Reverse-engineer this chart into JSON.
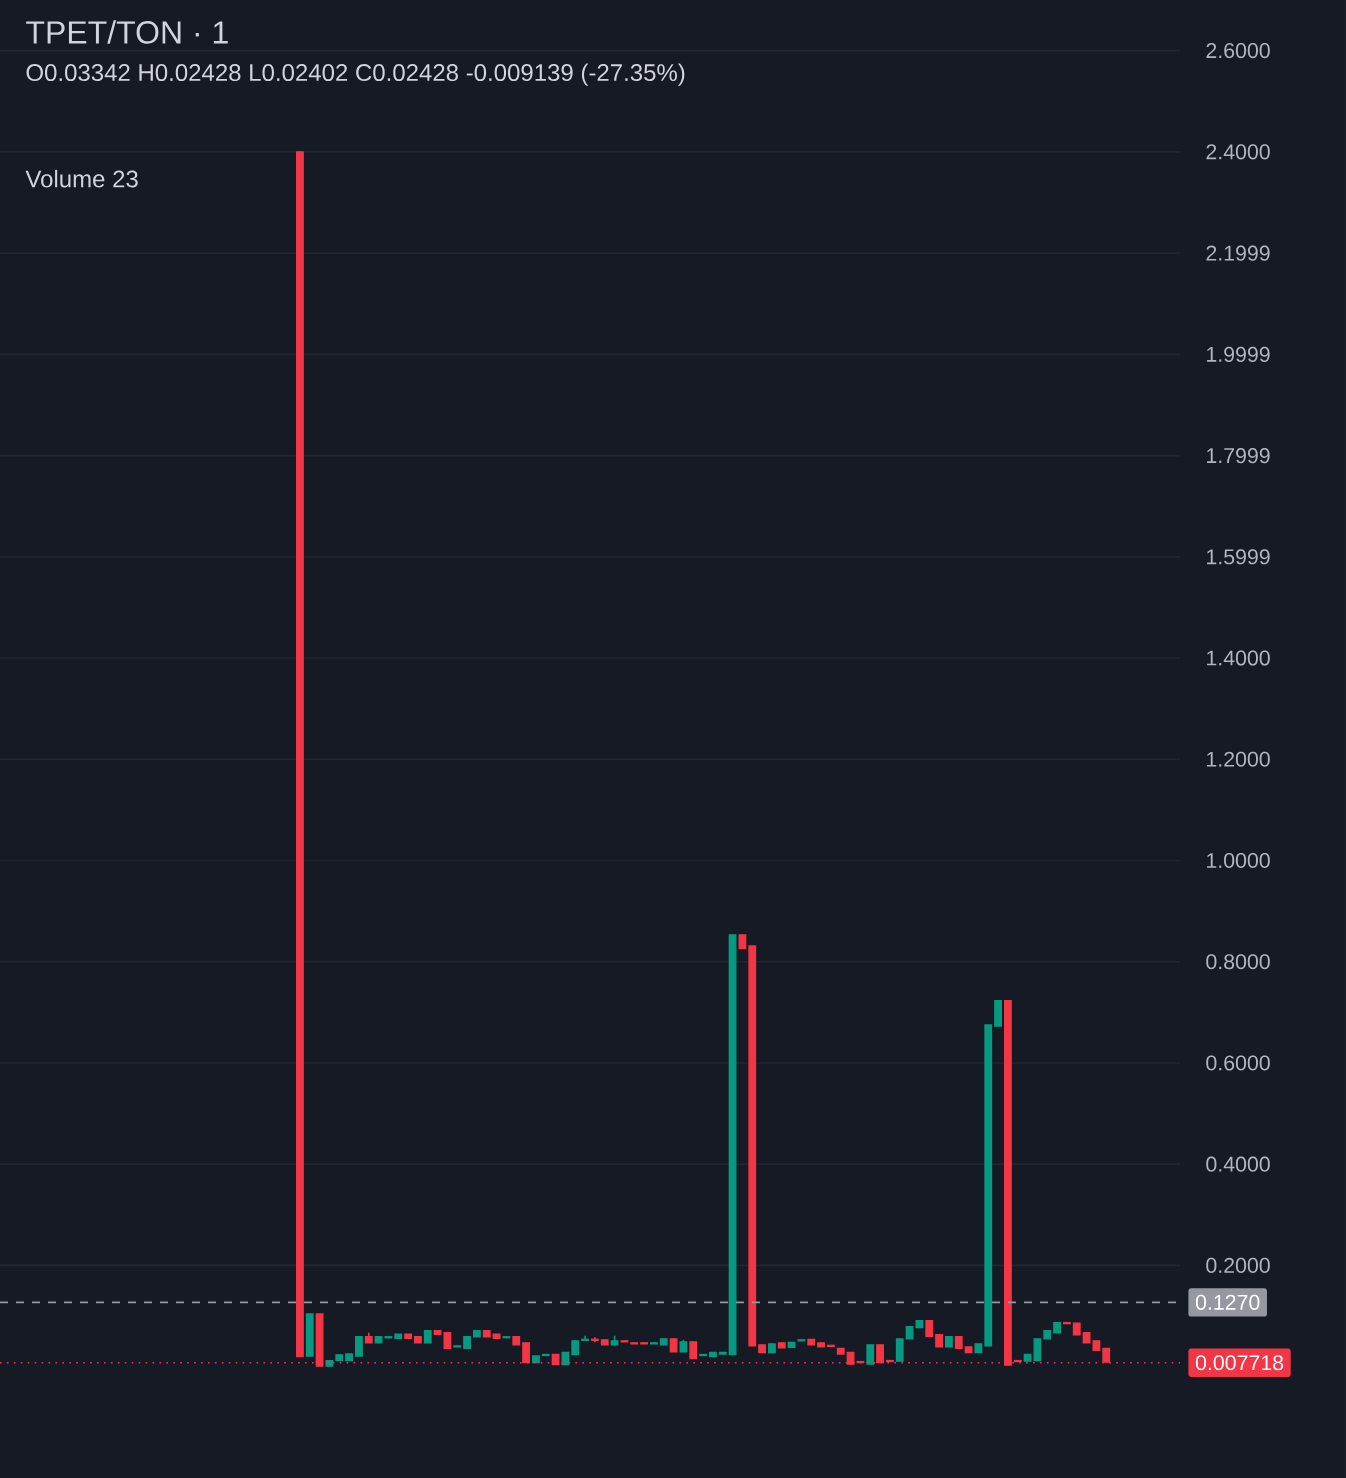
{
  "chart_data": {
    "type": "candlestick",
    "title": "TPET/TON · 1",
    "subtitle": "O0.03342 H0.02428 L0.02402 C0.02428 -0.009139 (-27.35%)",
    "annotations": [
      "Volume 23"
    ],
    "categories": [
      null,
      null,
      null,
      null,
      null,
      null,
      null,
      null,
      null,
      null,
      null,
      null,
      null,
      null,
      null,
      null,
      null,
      null,
      null,
      null,
      null,
      null,
      null,
      null,
      null,
      null,
      null,
      null,
      null,
      null,
      null,
      null,
      null,
      null,
      null,
      null,
      null,
      null,
      null,
      null,
      null,
      null,
      null,
      null,
      null,
      null,
      null,
      null,
      null,
      null,
      null,
      null,
      null,
      null,
      null,
      null,
      null,
      null,
      null,
      null,
      null,
      null,
      null,
      null,
      null,
      null,
      null,
      null,
      null,
      null,
      null,
      null,
      null,
      null,
      null,
      null,
      null,
      null,
      null,
      null,
      null,
      null,
      null,
      null,
      null,
      null,
      null,
      null,
      null,
      null,
      null,
      null,
      null,
      null,
      null,
      null,
      null,
      null,
      null,
      null,
      null,
      null,
      null,
      null,
      null,
      null,
      null,
      null,
      null,
      null,
      null,
      null,
      null,
      null,
      null,
      null,
      null,
      null,
      null,
      null
    ],
    "ohlc": [
      null,
      null,
      null,
      null,
      null,
      null,
      null,
      null,
      null,
      null,
      null,
      null,
      null,
      null,
      null,
      null,
      null,
      null,
      null,
      null,
      null,
      null,
      null,
      null,
      null,
      null,
      null,
      null,
      null,
      null,
      [
        2.4,
        2.4,
        0.02,
        0.02
      ],
      [
        0.021,
        0.104,
        0.021,
        0.104
      ],
      [
        0.104,
        0.104,
        0.001,
        0.001
      ],
      [
        0.001,
        0.012,
        0.001,
        0.012
      ],
      [
        0.012,
        0.025,
        0.012,
        0.023
      ],
      [
        0.012,
        0.025,
        0.012,
        0.025
      ],
      [
        0.021,
        0.059,
        0.021,
        0.059
      ],
      [
        0.059,
        0.067,
        0.047,
        0.047
      ],
      [
        0.047,
        0.059,
        0.047,
        0.059
      ],
      [
        0.057,
        0.059,
        0.057,
        0.059
      ],
      [
        0.056,
        0.064,
        0.056,
        0.064
      ],
      [
        0.064,
        0.064,
        0.056,
        0.056
      ],
      [
        0.059,
        0.059,
        0.047,
        0.047
      ],
      [
        0.047,
        0.071,
        0.047,
        0.071
      ],
      [
        0.071,
        0.071,
        0.064,
        0.064
      ],
      [
        0.067,
        0.067,
        0.036,
        0.036
      ],
      [
        0.039,
        0.041,
        0.039,
        0.041
      ],
      [
        0.036,
        0.059,
        0.036,
        0.059
      ],
      [
        0.059,
        0.071,
        0.059,
        0.071
      ],
      [
        0.071,
        0.071,
        0.059,
        0.059
      ],
      [
        0.064,
        0.064,
        0.056,
        0.056
      ],
      [
        0.057,
        0.059,
        0.057,
        0.059
      ],
      [
        0.059,
        0.059,
        0.043,
        0.043
      ],
      [
        0.047,
        0.047,
        0.008,
        0.008
      ],
      [
        0.008,
        0.021,
        0.008,
        0.021
      ],
      [
        0.022,
        0.024,
        0.022,
        0.024
      ],
      [
        0.024,
        0.024,
        0.004,
        0.004
      ],
      [
        0.004,
        0.028,
        0.004,
        0.028
      ],
      [
        0.024,
        0.051,
        0.024,
        0.051
      ],
      [
        0.052,
        0.061,
        0.052,
        0.054
      ],
      [
        0.054,
        0.058,
        0.048,
        0.052
      ],
      [
        0.053,
        0.053,
        0.043,
        0.043
      ],
      [
        0.043,
        0.061,
        0.043,
        0.051
      ],
      [
        0.051,
        0.051,
        0.049,
        0.049
      ],
      [
        0.047,
        0.047,
        0.045,
        0.045
      ],
      [
        0.047,
        0.047,
        0.045,
        0.045
      ],
      [
        0.045,
        0.047,
        0.045,
        0.047
      ],
      [
        0.043,
        0.055,
        0.043,
        0.055
      ],
      [
        0.055,
        0.055,
        0.029,
        0.029
      ],
      [
        0.029,
        0.053,
        0.029,
        0.049
      ],
      [
        0.049,
        0.049,
        0.016,
        0.016
      ],
      [
        0.022,
        0.024,
        0.022,
        0.024
      ],
      [
        0.02,
        0.028,
        0.02,
        0.028
      ],
      [
        0.025,
        0.028,
        0.025,
        0.028
      ],
      [
        0.024,
        0.853,
        0.024,
        0.853
      ],
      [
        0.853,
        0.853,
        0.826,
        0.826
      ],
      [
        0.831,
        0.831,
        0.041,
        0.041
      ],
      [
        0.043,
        0.043,
        0.028,
        0.028
      ],
      [
        0.028,
        0.045,
        0.028,
        0.045
      ],
      [
        0.047,
        0.047,
        0.037,
        0.037
      ],
      [
        0.038,
        0.048,
        0.038,
        0.048
      ],
      [
        0.051,
        0.053,
        0.051,
        0.053
      ],
      [
        0.054,
        0.054,
        0.043,
        0.043
      ],
      [
        0.047,
        0.047,
        0.039,
        0.039
      ],
      [
        0.042,
        0.042,
        0.04,
        0.04
      ],
      [
        0.036,
        0.036,
        0.025,
        0.025
      ],
      [
        0.028,
        0.028,
        0.005,
        0.005
      ],
      [
        0.01,
        0.01,
        0.008,
        0.008
      ],
      [
        0.005,
        0.043,
        0.005,
        0.043
      ],
      [
        0.043,
        0.043,
        0.008,
        0.008
      ],
      [
        0.012,
        0.012,
        0.01,
        0.01
      ],
      [
        0.011,
        0.055,
        0.011,
        0.055
      ],
      [
        0.055,
        0.079,
        0.055,
        0.079
      ],
      [
        0.077,
        0.091,
        0.077,
        0.091
      ],
      [
        0.091,
        0.091,
        0.06,
        0.06
      ],
      [
        0.063,
        0.063,
        0.039,
        0.039
      ],
      [
        0.039,
        0.059,
        0.039,
        0.059
      ],
      [
        0.059,
        0.059,
        0.036,
        0.036
      ],
      [
        0.039,
        0.039,
        0.028,
        0.028
      ],
      [
        0.028,
        0.045,
        0.028,
        0.045
      ],
      [
        0.041,
        0.675,
        0.041,
        0.675
      ],
      [
        0.673,
        0.723,
        0.673,
        0.723
      ],
      [
        0.723,
        0.723,
        0.003,
        0.003
      ],
      [
        0.012,
        0.012,
        0.01,
        0.01
      ],
      [
        0.011,
        0.024,
        0.011,
        0.024
      ],
      [
        0.012,
        0.055,
        0.012,
        0.055
      ],
      [
        0.055,
        0.071,
        0.055,
        0.071
      ],
      [
        0.067,
        0.087,
        0.067,
        0.087
      ],
      [
        0.087,
        0.087,
        0.085,
        0.085
      ],
      [
        0.086,
        0.086,
        0.063,
        0.063
      ],
      [
        0.067,
        0.067,
        0.047,
        0.047
      ],
      [
        0.051,
        0.051,
        0.032,
        0.032
      ],
      [
        0.036,
        0.036,
        0.009,
        0.009
      ],
      null,
      null,
      null,
      null,
      null,
      null,
      null
    ],
    "ylim": [
      -0.22,
      2.7
    ],
    "yticks": [
      {
        "value": 0.2,
        "label": "0.2000"
      },
      {
        "value": 0.4,
        "label": "0.4000"
      },
      {
        "value": 0.6,
        "label": "0.6000"
      },
      {
        "value": 0.8,
        "label": "0.8000"
      },
      {
        "value": 1.0,
        "label": "1.0000"
      },
      {
        "value": 1.2,
        "label": "1.2000"
      },
      {
        "value": 1.4,
        "label": "1.4000"
      },
      {
        "value": 1.5999,
        "label": "1.5999"
      },
      {
        "value": 1.7999,
        "label": "1.7999"
      },
      {
        "value": 1.9999,
        "label": "1.9999"
      },
      {
        "value": 2.1999,
        "label": "2.1999"
      },
      {
        "value": 2.4,
        "label": "2.4000"
      },
      {
        "value": 2.6,
        "label": "2.6000"
      }
    ],
    "ref_lines": [
      {
        "axis": "y",
        "value": 0.127,
        "label": "0.1270",
        "color": "#9598a1",
        "line_style": "dashed"
      },
      {
        "axis": "y",
        "value": 0.007718,
        "label": "0.007718",
        "color": "#f23645",
        "line_style": "dotted"
      }
    ],
    "grid": "y"
  }
}
